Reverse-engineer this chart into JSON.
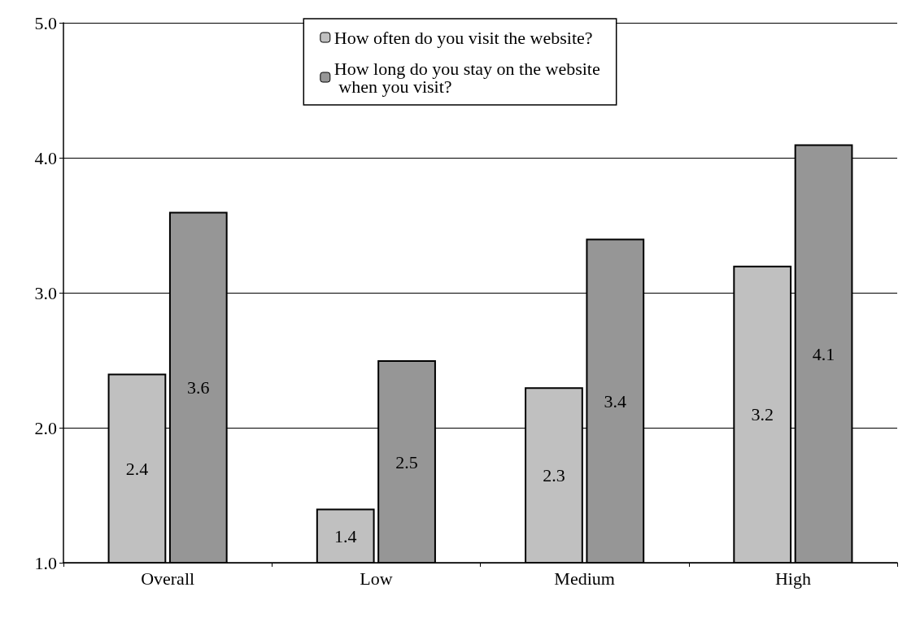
{
  "chart_data": {
    "type": "bar",
    "categories": [
      "Overall",
      "Low",
      "Medium",
      "High"
    ],
    "series": [
      {
        "name": "How often do you visit the website?",
        "color": "#c0c0c0",
        "values": [
          2.4,
          1.4,
          2.3,
          3.2
        ]
      },
      {
        "name": "How long do you stay on the website when you visit?",
        "color": "#969696",
        "values": [
          3.6,
          2.5,
          3.4,
          4.1
        ]
      }
    ],
    "ylim": [
      1,
      5
    ],
    "yticks": [
      {
        "value": 1,
        "label": "1.0"
      },
      {
        "value": 2,
        "label": "2.0"
      },
      {
        "value": 3,
        "label": "3.0"
      },
      {
        "value": 4,
        "label": "4.0"
      },
      {
        "value": 5,
        "label": "5.0"
      }
    ],
    "grid": "y",
    "legend": "top",
    "data_labels": true
  }
}
